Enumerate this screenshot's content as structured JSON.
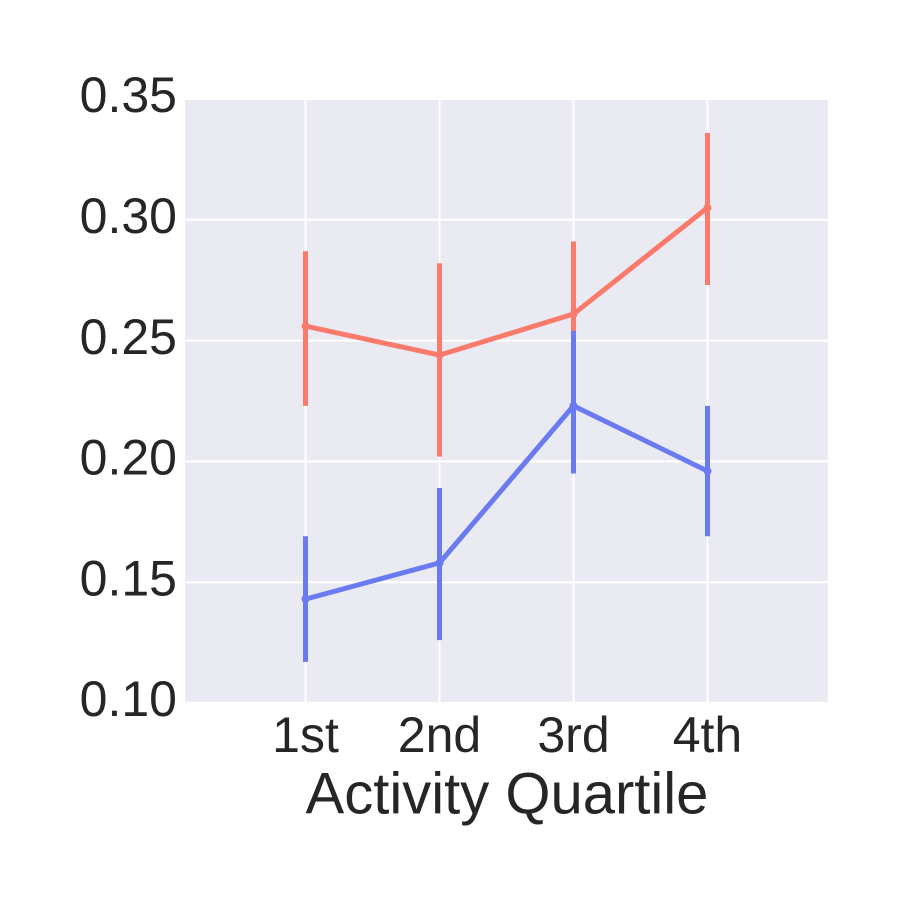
{
  "chart_data": {
    "type": "line",
    "xlabel": "Activity Quartile",
    "categories": [
      "1st",
      "2nd",
      "3rd",
      "4th"
    ],
    "series": [
      {
        "color": "#fa7b6c",
        "values": [
          0.256,
          0.244,
          0.261,
          0.305
        ],
        "lower": [
          0.223,
          0.202,
          0.232,
          0.273
        ],
        "upper": [
          0.287,
          0.282,
          0.291,
          0.336
        ]
      },
      {
        "color": "#6a7bf2",
        "values": [
          0.143,
          0.158,
          0.223,
          0.196
        ],
        "lower": [
          0.117,
          0.126,
          0.195,
          0.169
        ],
        "upper": [
          0.169,
          0.189,
          0.254,
          0.223
        ]
      }
    ],
    "ylim": [
      0.1,
      0.35
    ],
    "yticks": [
      {
        "value": 0.1,
        "label": "0.10"
      },
      0.15,
      {
        "value": 0.2,
        "label": "0.20"
      },
      0.25,
      {
        "value": 0.3,
        "label": "0.30"
      },
      0.35
    ],
    "grid": true
  }
}
